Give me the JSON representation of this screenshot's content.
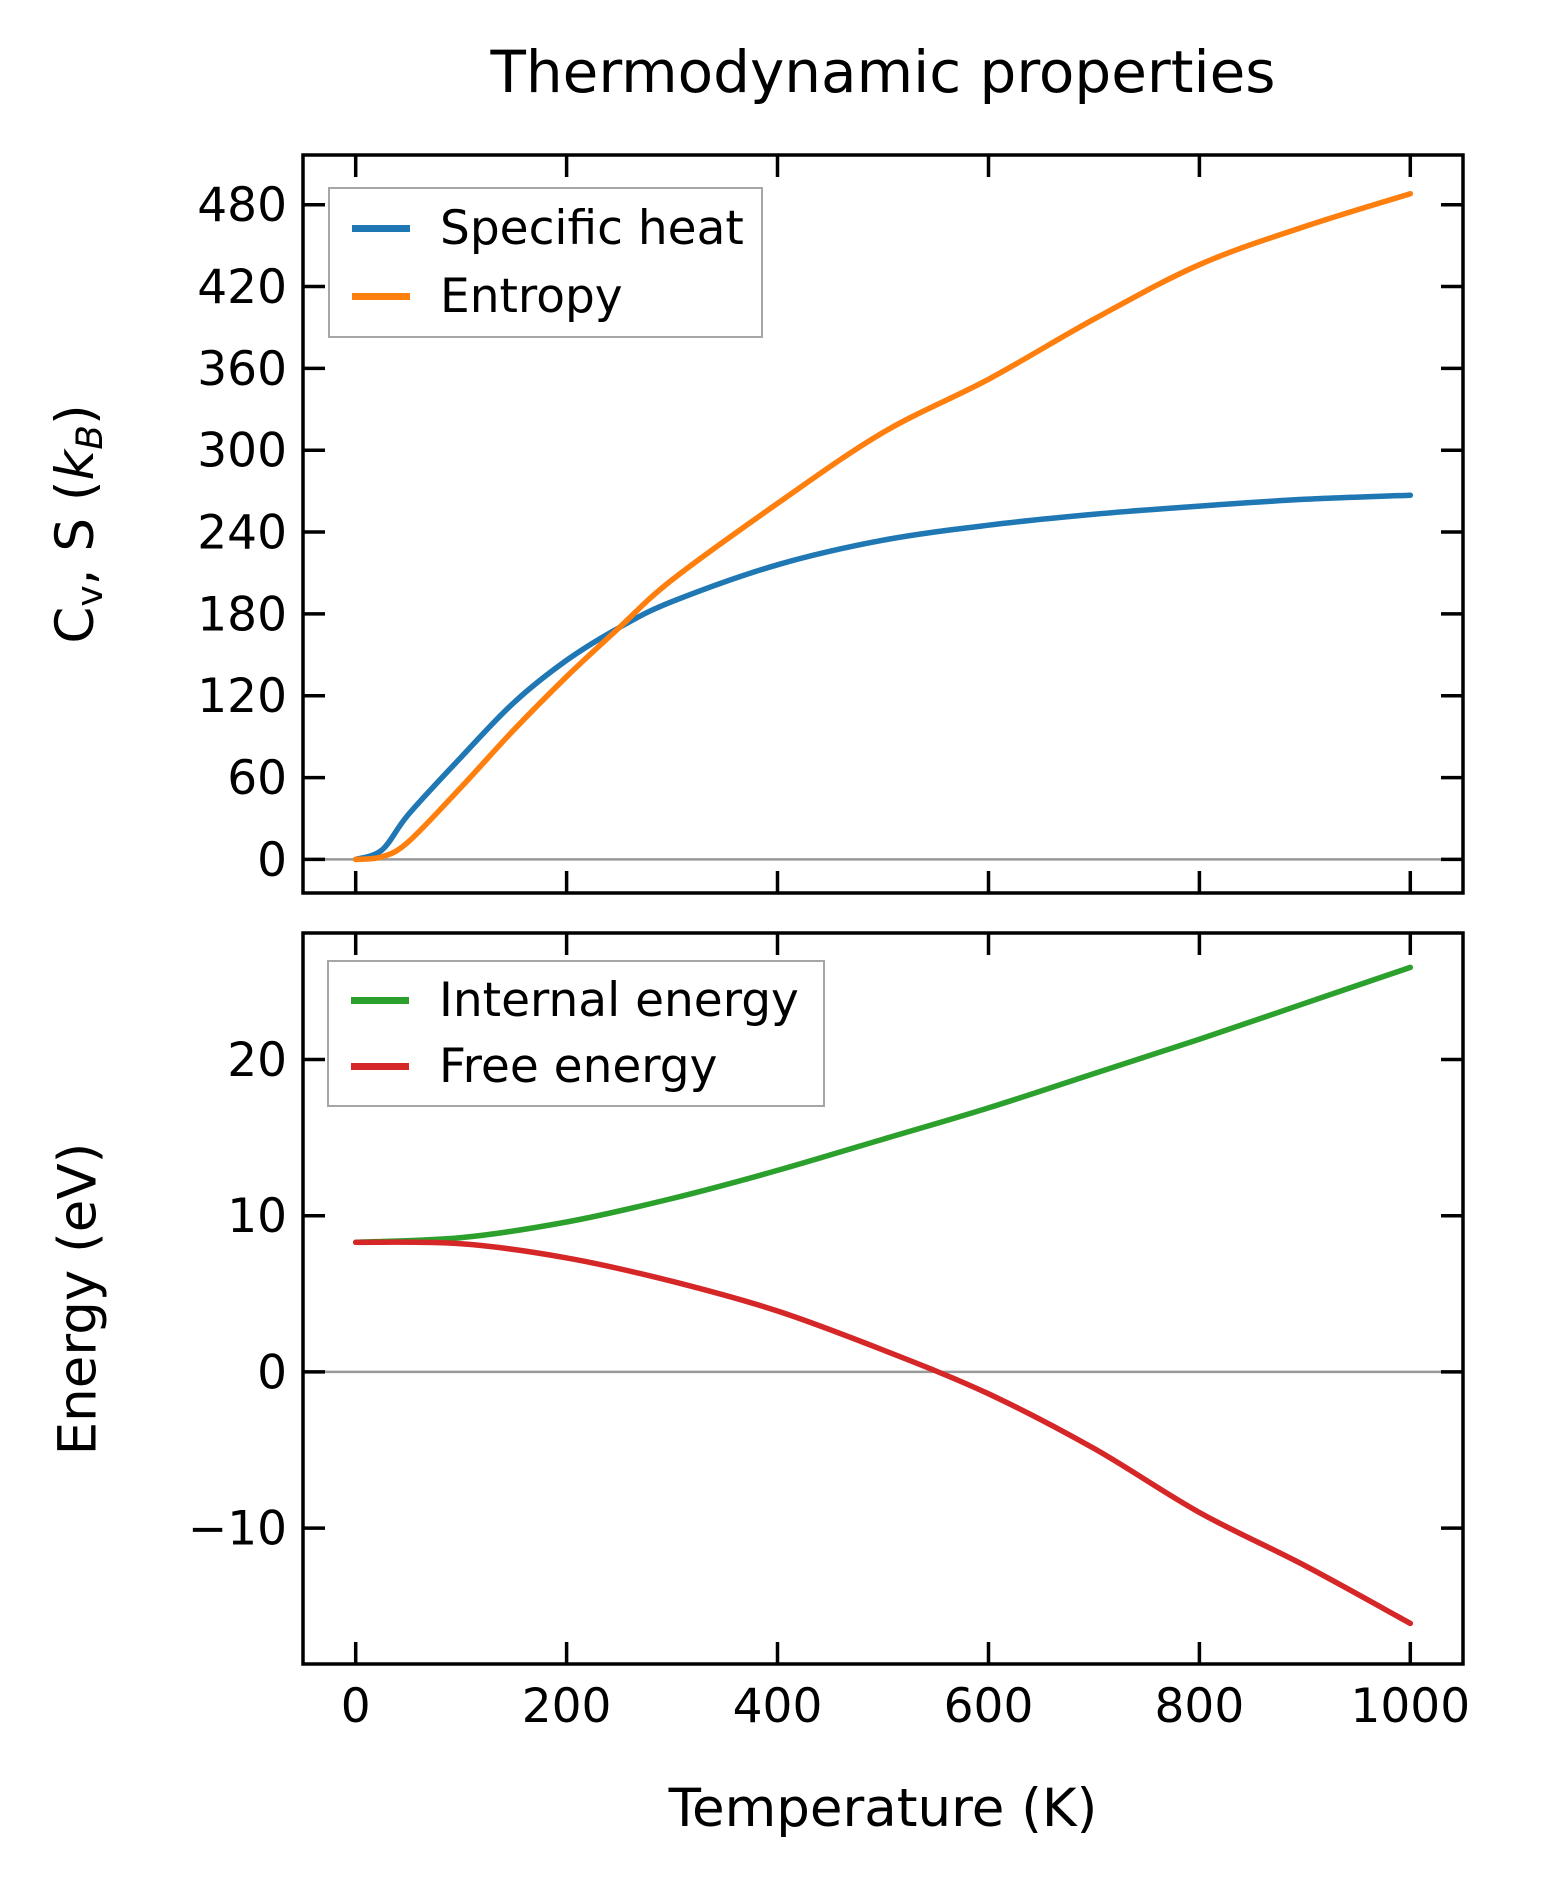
{
  "figure": {
    "title": "Thermodynamic properties",
    "background": "#ffffff",
    "spine_color": "#000000",
    "zero_line_color": "#999999"
  },
  "chart_data": [
    {
      "type": "line",
      "panel": "top",
      "ylabel": "Cv, S (kB)",
      "ylabel_segments": [
        {
          "text": "C",
          "style": "normal"
        },
        {
          "text": "v",
          "style": "sub"
        },
        {
          "text": ", S (",
          "style": "normal"
        },
        {
          "text": "k",
          "style": "italic"
        },
        {
          "text": "B",
          "style": "italic-sub"
        },
        {
          "text": ")",
          "style": "normal"
        }
      ],
      "xlim": [
        -50,
        1050
      ],
      "ylim": [
        -24.6,
        516.4
      ],
      "x_ticks": [
        0,
        200,
        400,
        600,
        800,
        1000
      ],
      "x_tick_labels": [
        "0",
        "200",
        "400",
        "600",
        "800",
        "1000"
      ],
      "x_tick_labels_visible": false,
      "y_ticks": [
        0,
        60,
        120,
        180,
        240,
        300,
        360,
        420,
        480
      ],
      "y_tick_labels": [
        "0",
        "60",
        "120",
        "180",
        "240",
        "300",
        "360",
        "420",
        "480"
      ],
      "grid": false,
      "zero_line": true,
      "legend_position": "upper left",
      "series": [
        {
          "name": "Specific heat",
          "color": "#1f77b4",
          "x": [
            0,
            25,
            50,
            100,
            150,
            200,
            250,
            300,
            400,
            500,
            600,
            700,
            800,
            900,
            1000
          ],
          "y": [
            0,
            7,
            33,
            75,
            115,
            146,
            170,
            189,
            216,
            234,
            245,
            253,
            259,
            264,
            267
          ]
        },
        {
          "name": "Entropy",
          "color": "#ff7f0e",
          "x": [
            0,
            25,
            50,
            100,
            150,
            200,
            250,
            300,
            400,
            500,
            600,
            700,
            800,
            900,
            1000
          ],
          "y": [
            0,
            2,
            13,
            53,
            95,
            134,
            170,
            205,
            261,
            313,
            352,
            396,
            436,
            464,
            488
          ]
        }
      ]
    },
    {
      "type": "line",
      "panel": "bottom",
      "ylabel": "Energy (eV)",
      "xlabel": "Temperature (K)",
      "xlim": [
        -50,
        1050
      ],
      "ylim": [
        -18.7,
        28.1
      ],
      "x_ticks": [
        0,
        200,
        400,
        600,
        800,
        1000
      ],
      "x_tick_labels": [
        "0",
        "200",
        "400",
        "600",
        "800",
        "1000"
      ],
      "x_tick_labels_visible": true,
      "y_ticks": [
        -10,
        0,
        10,
        20
      ],
      "y_tick_labels": [
        "−10",
        "0",
        "10",
        "20"
      ],
      "grid": false,
      "zero_line": true,
      "legend_position": "upper left",
      "series": [
        {
          "name": "Internal energy",
          "color": "#2ca02c",
          "x": [
            0,
            100,
            200,
            300,
            400,
            500,
            600,
            700,
            800,
            900,
            1000
          ],
          "y": [
            8.3,
            8.6,
            9.6,
            11.1,
            12.9,
            14.9,
            16.9,
            19.1,
            21.3,
            23.6,
            25.9
          ]
        },
        {
          "name": "Free energy",
          "color": "#d62728",
          "x": [
            0,
            100,
            200,
            300,
            400,
            500,
            600,
            700,
            800,
            900,
            1000
          ],
          "y": [
            8.3,
            8.2,
            7.3,
            5.8,
            3.9,
            1.4,
            -1.4,
            -4.9,
            -9.0,
            -12.4,
            -16.1
          ]
        }
      ]
    }
  ]
}
